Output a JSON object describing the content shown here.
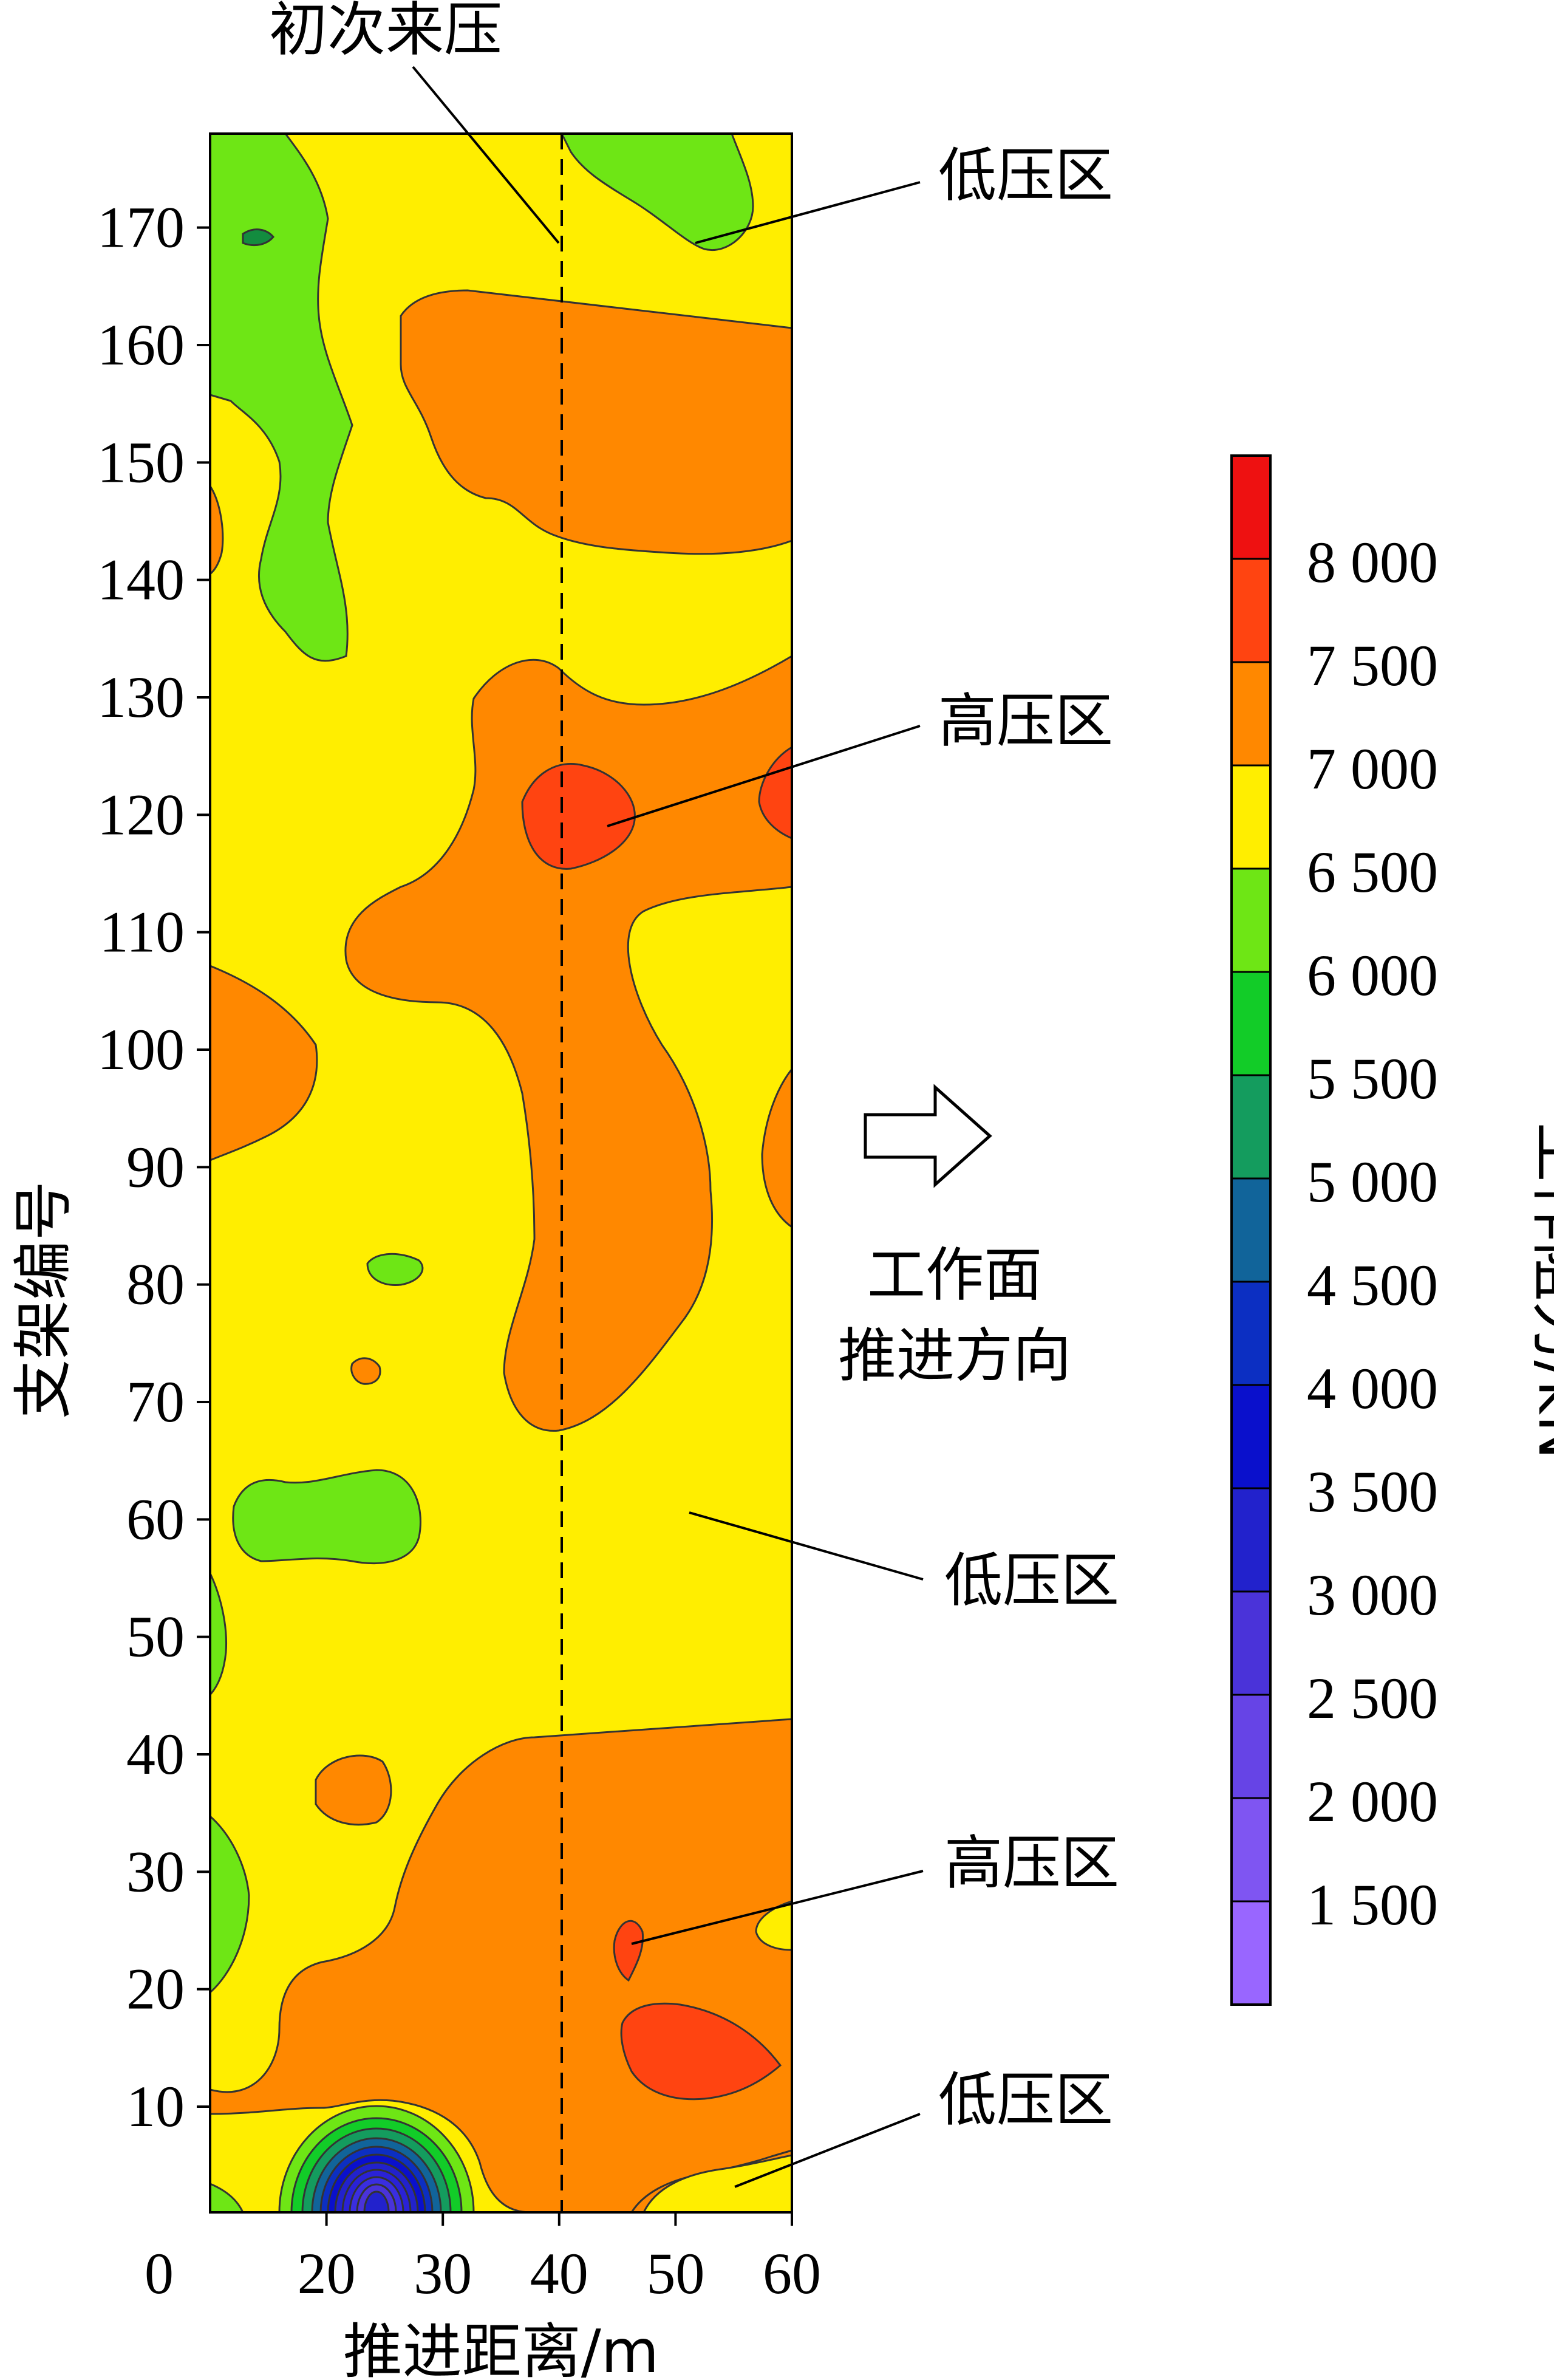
{
  "chart_data": {
    "type": "heatmap",
    "title": "",
    "xlabel": "推进距离/m",
    "ylabel": "支架编号",
    "xlim": [
      10,
      60
    ],
    "ylim": [
      1,
      178
    ],
    "x_ticks": [
      "0",
      "20",
      "30",
      "40",
      "50",
      "60"
    ],
    "y_ticks": [
      10,
      20,
      30,
      40,
      50,
      60,
      70,
      80,
      90,
      100,
      110,
      120,
      130,
      140,
      150,
      160,
      170
    ],
    "colorbar": {
      "label": "工作阻力/kN",
      "levels": [
        1500,
        2000,
        2500,
        3000,
        3500,
        4000,
        4500,
        5000,
        5500,
        6000,
        6500,
        7000,
        7500,
        8000
      ],
      "tick_labels": [
        "8 000",
        "7 500",
        "7 000",
        "6 500",
        "6 000",
        "5 500",
        "5 000",
        "4 500",
        "4 000",
        "3 500",
        "3 000",
        "2 500",
        "2 000",
        "1 500"
      ],
      "colors": [
        "#9966ff",
        "#7f55f2",
        "#6644e6",
        "#4a33d9",
        "#2222cc",
        "#0a10cc",
        "#0c2fc2",
        "#11649a",
        "#149c5e",
        "#12cc28",
        "#6ee615",
        "#ffee00",
        "#ff8800",
        "#ff4411",
        "#ee1111"
      ]
    },
    "first_weighting": {
      "label": "初次来压",
      "x": 40
    },
    "annotations": [
      "低压区",
      "高压区",
      "低压区",
      "高压区",
      "低压区"
    ],
    "direction_label": [
      "工作面",
      "推进方向"
    ],
    "regions_note": ""
  }
}
